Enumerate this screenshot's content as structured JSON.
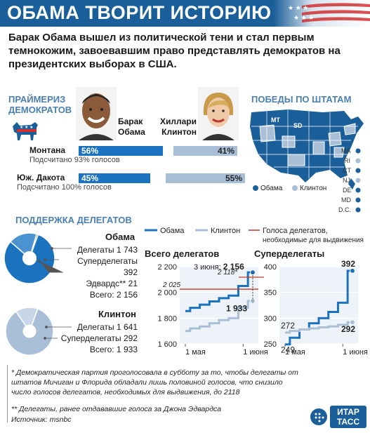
{
  "title": "ОБАМА ТВОРИТ ИСТОРИЮ",
  "lead": "Барак Обама вышел из политической тени и стал первым темнокожим, завоевавшим право представлять демократов на президентских выборах в США.",
  "primaries": {
    "title_line1": "ПРАЙМЕРИЗ",
    "title_line2": "ДЕМОКРАТОВ",
    "obama_name_line1": "Барак",
    "obama_name_line2": "Обама",
    "clinton_name_line1": "Хиллари",
    "clinton_name_line2": "Клинтон",
    "states": [
      {
        "name": "Монтана",
        "counted": "Подсчитано 93% голосов",
        "obama": 56,
        "clinton": 41,
        "obama_label": "56%",
        "clinton_label": "41%"
      },
      {
        "name": "Юж. Дакота",
        "counted": "Подсчитано 100% голосов",
        "obama": 45,
        "clinton": 55,
        "obama_label": "45%",
        "clinton_label": "55%"
      }
    ]
  },
  "map": {
    "title": "ПОБЕДЫ ПО ШТАТАМ",
    "labels": [
      "MT",
      "SD"
    ],
    "small_states": [
      "MA",
      "RI",
      "CT",
      "NJ",
      "DE",
      "MD",
      "D.C."
    ],
    "legend_obama": "Обама",
    "legend_clinton": "Клинтон",
    "colors": {
      "obama": "#1b5f9a",
      "clinton": "#a9bfd8"
    }
  },
  "support": {
    "title": "ПОДДЕРЖКА ДЕЛЕГАТОВ",
    "obama": {
      "name": "Обама",
      "lines": [
        "Делегаты 1 743",
        "Суперделегаты 392",
        "Эдвардс** 21",
        "Всего: 2 156"
      ],
      "delegates": 1743,
      "superdelegates": 392,
      "edwards": 21
    },
    "clinton": {
      "name": "Клинтон",
      "lines": [
        "Делегаты 1 641",
        "Суперделегаты 292",
        "Всего: 1 933"
      ],
      "delegates": 1641,
      "superdelegates": 292
    }
  },
  "legend": {
    "obama": "Обама",
    "clinton": "Клинтон",
    "threshold_line1": "Голоса делегатов,",
    "threshold_line2": "необходимые для выдвижения"
  },
  "chart_data": [
    {
      "type": "line",
      "title": "Всего делегатов",
      "xticks": [
        "1 мая",
        "1 июня"
      ],
      "ylim": [
        1600,
        2200
      ],
      "yticks": [
        "1 600",
        "1 800",
        "2 000",
        "2 200"
      ],
      "series": [
        {
          "name": "Обама",
          "x": [
            "1 мая",
            "5 мая",
            "10 мая",
            "15 мая",
            "20 мая",
            "25 мая",
            "31 мая",
            "3 июня"
          ],
          "values": [
            1855,
            1880,
            1905,
            1930,
            1955,
            1975,
            2050,
            2156
          ]
        },
        {
          "name": "Клинтон",
          "x": [
            "1 мая",
            "5 мая",
            "10 мая",
            "15 мая",
            "20 мая",
            "25 мая",
            "31 мая",
            "3 июня"
          ],
          "values": [
            1700,
            1720,
            1735,
            1760,
            1785,
            1800,
            1880,
            1933
          ]
        }
      ],
      "threshold_old": 2025,
      "threshold_old_label": "2 025",
      "threshold_new": 2118,
      "threshold_new_label": "2 118*",
      "annotation_obama_prefix": "3 июня: ",
      "annotation_obama_value": "2 156",
      "annotation_clinton_value": "1 933"
    },
    {
      "type": "line",
      "title": "Суперделегаты",
      "xticks": [
        "1 мая",
        "1 июня"
      ],
      "ylim": [
        250,
        400
      ],
      "yticks": [
        "250",
        "300",
        "350",
        "400"
      ],
      "series": [
        {
          "name": "Обама",
          "x": [
            "1 мая",
            "5 мая",
            "10 мая",
            "15 мая",
            "20 мая",
            "25 мая",
            "31 мая",
            "3 июня"
          ],
          "values": [
            249,
            262,
            278,
            290,
            300,
            312,
            330,
            392
          ]
        },
        {
          "name": "Клинтон",
          "x": [
            "1 мая",
            "5 мая",
            "10 мая",
            "15 мая",
            "20 мая",
            "25 мая",
            "31 мая",
            "3 июня"
          ],
          "values": [
            272,
            275,
            278,
            280,
            282,
            284,
            287,
            292
          ]
        }
      ],
      "labels": [
        "272",
        "249",
        "392",
        "292"
      ]
    }
  ],
  "notes": {
    "note1": "* Демократическая партия проголосовала в субботу за то, чтобы делегаты от штатов Мичиган и Флорида обладали лишь половиной голосов, что снизило число голосов делегатов, необходимых для выдвижения, до 2118",
    "note2": "** Делегаты, ранее отдававшие голоса за Джона Эдвардса",
    "source": "Источник: msnbc"
  },
  "logo": {
    "line1": "ИТАР",
    "line2": "ТАСС"
  }
}
